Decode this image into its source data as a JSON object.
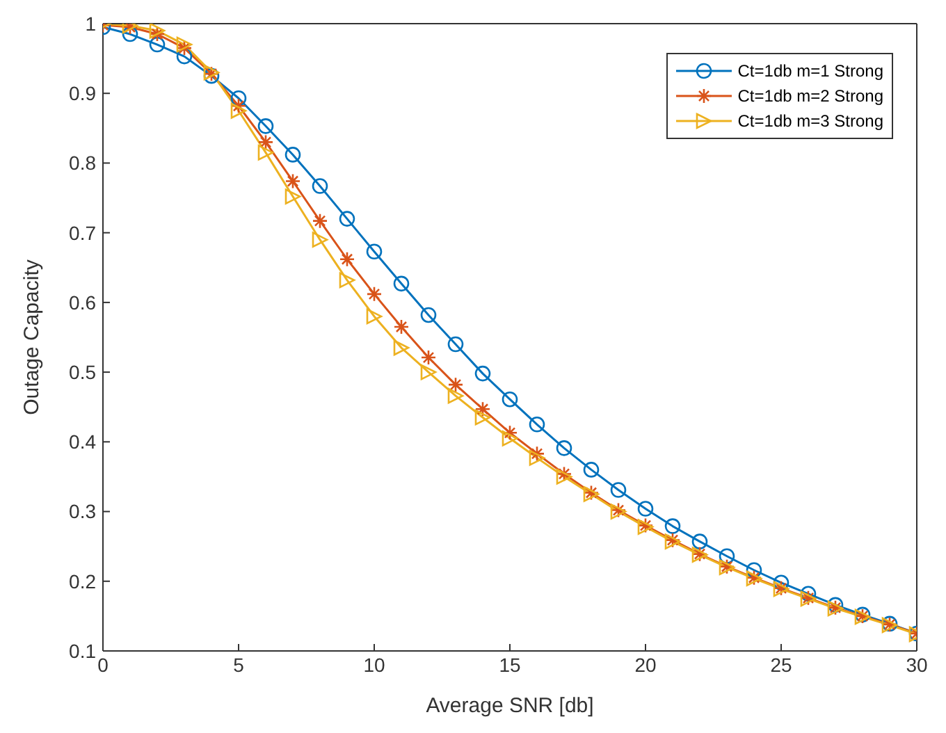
{
  "chart_data": {
    "type": "line",
    "xlabel": "Average SNR [db]",
    "ylabel": "Outage Capacity",
    "x": [
      0,
      1,
      2,
      3,
      4,
      5,
      6,
      7,
      8,
      9,
      10,
      11,
      12,
      13,
      14,
      15,
      16,
      17,
      18,
      19,
      20,
      21,
      22,
      23,
      24,
      25,
      26,
      27,
      28,
      29,
      30
    ],
    "xlim": [
      0,
      30
    ],
    "xticks": [
      0,
      5,
      10,
      15,
      20,
      25,
      30
    ],
    "ylim": [
      0.1,
      1
    ],
    "yticks": [
      0.1,
      0.2,
      0.3,
      0.4,
      0.5,
      0.6,
      0.7,
      0.8,
      0.9,
      1
    ],
    "grid": false,
    "legend": "top right",
    "line_style": "solid",
    "series": [
      {
        "name": "Ct=1db m=1 Strong",
        "color": "#0072bd",
        "marker": "circle",
        "values": [
          0.995,
          0.985,
          0.97,
          0.953,
          0.925,
          0.893,
          0.853,
          0.812,
          0.767,
          0.72,
          0.673,
          0.627,
          0.582,
          0.54,
          0.498,
          0.461,
          0.425,
          0.391,
          0.36,
          0.331,
          0.304,
          0.279,
          0.257,
          0.236,
          0.216,
          0.198,
          0.182,
          0.166,
          0.152,
          0.139,
          0.125
        ]
      },
      {
        "name": "Ct=1db m=2 Strong",
        "color": "#d95319",
        "marker": "cross",
        "values": [
          0.998,
          0.995,
          0.985,
          0.965,
          0.928,
          0.882,
          0.83,
          0.774,
          0.717,
          0.662,
          0.612,
          0.565,
          0.521,
          0.482,
          0.447,
          0.413,
          0.383,
          0.354,
          0.327,
          0.302,
          0.28,
          0.259,
          0.239,
          0.221,
          0.205,
          0.19,
          0.176,
          0.162,
          0.15,
          0.138,
          0.125
        ]
      },
      {
        "name": "Ct=1db m=3 Strong",
        "color": "#edb120",
        "marker": "triangle",
        "values": [
          1.0,
          0.997,
          0.99,
          0.97,
          0.93,
          0.875,
          0.815,
          0.752,
          0.69,
          0.632,
          0.58,
          0.535,
          0.5,
          0.466,
          0.435,
          0.405,
          0.377,
          0.35,
          0.325,
          0.3,
          0.278,
          0.257,
          0.238,
          0.22,
          0.204,
          0.189,
          0.175,
          0.161,
          0.149,
          0.137,
          0.124
        ]
      }
    ]
  }
}
